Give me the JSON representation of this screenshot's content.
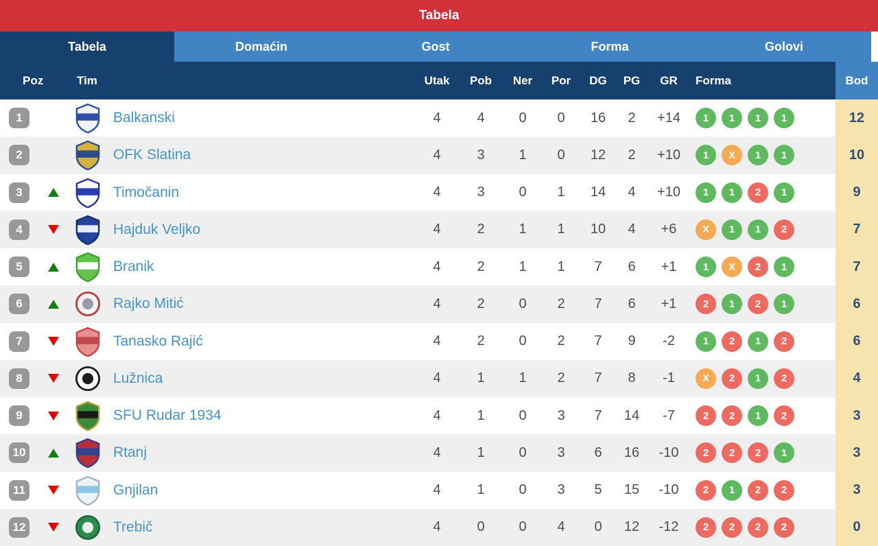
{
  "title_bar": {
    "title": "Tabela"
  },
  "tabs": [
    {
      "label": "Tabela",
      "active": true
    },
    {
      "label": "Domaćin",
      "active": false
    },
    {
      "label": "Gost",
      "active": false
    },
    {
      "label": "Forma",
      "active": false
    },
    {
      "label": "Golovi",
      "active": false
    }
  ],
  "columns": {
    "poz": "Poz",
    "tim": "Tim",
    "utak": "Utak",
    "pob": "Pob",
    "ner": "Ner",
    "por": "Por",
    "dg": "DG",
    "pg": "PG",
    "gr": "GR",
    "forma": "Forma",
    "bod": "Bod"
  },
  "form_legend": {
    "win": "1",
    "draw": "X",
    "loss": "2"
  },
  "colors": {
    "title_bar_bg": "#D13239",
    "tab_active_bg": "#16406E",
    "tab_inactive_bg": "#4184C4",
    "header_bg": "#16406E",
    "points_header_bg": "#4184C4",
    "points_col_bg": "#F6E3AE",
    "row_alt_bg": "#EFEFEF",
    "team_name": "#4493CC",
    "points_text": "#2F4E74",
    "position_badge_bg": "#989898",
    "form_win": "#5FB95F",
    "form_draw": "#F5A951",
    "form_loss": "#EC6A60",
    "arrow_up": "#118011",
    "arrow_down": "#E60000"
  },
  "rows": [
    {
      "pos": "1",
      "movement": "none",
      "team": "Balkanski",
      "logo": {
        "shape": "shield",
        "primary": "#F2F4FA",
        "secondary": "#2D4DA6",
        "border": "#2D4DA6"
      },
      "utak": "4",
      "pob": "4",
      "ner": "0",
      "por": "0",
      "dg": "16",
      "pg": "2",
      "gr": "+14",
      "form": [
        "1",
        "1",
        "1",
        "1"
      ],
      "bod": "12"
    },
    {
      "pos": "2",
      "movement": "none",
      "team": "OFK Slatina",
      "logo": {
        "shape": "shield",
        "primary": "#D4B33C",
        "secondary": "#2B4D8E",
        "border": "#2B4D8E"
      },
      "utak": "4",
      "pob": "3",
      "ner": "1",
      "por": "0",
      "dg": "12",
      "pg": "2",
      "gr": "+10",
      "form": [
        "1",
        "X",
        "1",
        "1"
      ],
      "bod": "10"
    },
    {
      "pos": "3",
      "movement": "up",
      "team": "Timočanin",
      "logo": {
        "shape": "shield",
        "primary": "#FFFFFF",
        "secondary": "#2B3FB0",
        "border": "#2233A8"
      },
      "utak": "4",
      "pob": "3",
      "ner": "0",
      "por": "1",
      "dg": "14",
      "pg": "4",
      "gr": "+10",
      "form": [
        "1",
        "1",
        "2",
        "1"
      ],
      "bod": "9"
    },
    {
      "pos": "4",
      "movement": "down",
      "team": "Hajduk Veljko",
      "logo": {
        "shape": "shield",
        "primary": "#24439A",
        "secondary": "#E8ECF5",
        "border": "#16306E"
      },
      "utak": "4",
      "pob": "2",
      "ner": "1",
      "por": "1",
      "dg": "10",
      "pg": "4",
      "gr": "+6",
      "form": [
        "X",
        "1",
        "1",
        "2"
      ],
      "bod": "7"
    },
    {
      "pos": "5",
      "movement": "up",
      "team": "Branik",
      "logo": {
        "shape": "shield",
        "primary": "#62C44A",
        "secondary": "#FFFFFF",
        "border": "#3F9E2F"
      },
      "utak": "4",
      "pob": "2",
      "ner": "1",
      "por": "1",
      "dg": "7",
      "pg": "6",
      "gr": "+1",
      "form": [
        "1",
        "X",
        "2",
        "1"
      ],
      "bod": "7"
    },
    {
      "pos": "6",
      "movement": "up",
      "team": "Rajko Mitić",
      "logo": {
        "shape": "circle",
        "primary": "#F5F5F5",
        "secondary": "#9A9AAC",
        "border": "#C03A3A"
      },
      "utak": "4",
      "pob": "2",
      "ner": "0",
      "por": "2",
      "dg": "7",
      "pg": "6",
      "gr": "+1",
      "form": [
        "2",
        "1",
        "2",
        "1"
      ],
      "bod": "6"
    },
    {
      "pos": "7",
      "movement": "down",
      "team": "Tanasko Rajić",
      "logo": {
        "shape": "shield",
        "primary": "#E89090",
        "secondary": "#C04848",
        "border": "#C04848"
      },
      "utak": "4",
      "pob": "2",
      "ner": "0",
      "por": "2",
      "dg": "7",
      "pg": "9",
      "gr": "-2",
      "form": [
        "1",
        "2",
        "1",
        "2"
      ],
      "bod": "6"
    },
    {
      "pos": "8",
      "movement": "down",
      "team": "Lužnica",
      "logo": {
        "shape": "circle",
        "primary": "#FFFFFF",
        "secondary": "#1C1C1C",
        "border": "#1C1C1C"
      },
      "utak": "4",
      "pob": "1",
      "ner": "1",
      "por": "2",
      "dg": "7",
      "pg": "8",
      "gr": "-1",
      "form": [
        "X",
        "2",
        "1",
        "2"
      ],
      "bod": "4"
    },
    {
      "pos": "9",
      "movement": "down",
      "team": "SFU Rudar 1934",
      "logo": {
        "shape": "shield",
        "primary": "#3A8A3A",
        "secondary": "#1A1A1A",
        "border": "#B0A030"
      },
      "utak": "4",
      "pob": "1",
      "ner": "0",
      "por": "3",
      "dg": "7",
      "pg": "14",
      "gr": "-7",
      "form": [
        "2",
        "2",
        "1",
        "2"
      ],
      "bod": "3"
    },
    {
      "pos": "10",
      "movement": "up",
      "team": "Rtanj",
      "logo": {
        "shape": "shield",
        "primary": "#B8303A",
        "secondary": "#34418F",
        "border": "#34418F"
      },
      "utak": "4",
      "pob": "1",
      "ner": "0",
      "por": "3",
      "dg": "6",
      "pg": "16",
      "gr": "-10",
      "form": [
        "2",
        "2",
        "2",
        "1"
      ],
      "bod": "3"
    },
    {
      "pos": "11",
      "movement": "down",
      "team": "Gnjilan",
      "logo": {
        "shape": "shield",
        "primary": "#EEF4F8",
        "secondary": "#8FC6E8",
        "border": "#A0B4C4"
      },
      "utak": "4",
      "pob": "1",
      "ner": "0",
      "por": "3",
      "dg": "5",
      "pg": "15",
      "gr": "-10",
      "form": [
        "2",
        "1",
        "2",
        "2"
      ],
      "bod": "3"
    },
    {
      "pos": "12",
      "movement": "down",
      "team": "Trebič",
      "logo": {
        "shape": "circle",
        "primary": "#2E8B50",
        "secondary": "#E8F2EA",
        "border": "#20683A"
      },
      "utak": "4",
      "pob": "0",
      "ner": "0",
      "por": "4",
      "dg": "0",
      "pg": "12",
      "gr": "-12",
      "form": [
        "2",
        "2",
        "2",
        "2"
      ],
      "bod": "0"
    }
  ]
}
